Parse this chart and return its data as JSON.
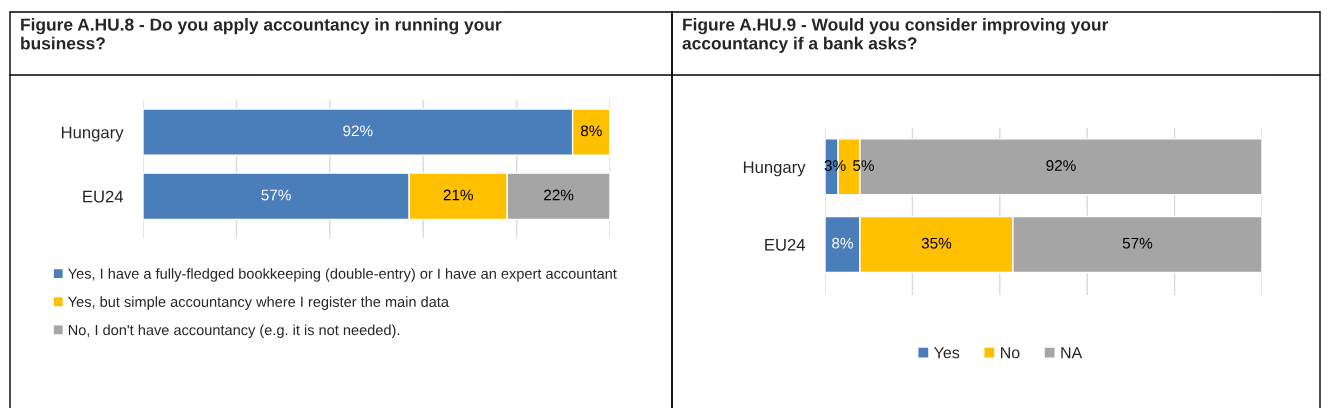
{
  "chart_data": [
    {
      "type": "bar",
      "orientation": "horizontal",
      "stacked": true,
      "title": "Figure A.HU.8 - Do you apply accountancy in running your\nbusiness?",
      "categories": [
        "Hungary",
        "EU24"
      ],
      "series": [
        {
          "name": "Yes, I have a fully-fledged bookkeeping (double-entry) or I have an expert accountant",
          "color": "#4a7ebb",
          "values": [
            92,
            57
          ],
          "value_labels": [
            "92%",
            "57%"
          ]
        },
        {
          "name": "Yes, but simple accountancy where I register the main data",
          "color": "#ffc000",
          "values": [
            8,
            21
          ],
          "value_labels": [
            "8%",
            "21%"
          ]
        },
        {
          "name": "No, I don't have accountancy (e.g. it is not needed).",
          "color": "#a5a5a5",
          "values": [
            null,
            22
          ],
          "value_labels": [
            null,
            "22%"
          ]
        }
      ],
      "grid": "x",
      "tick_labels": "y",
      "legend": "bottom"
    },
    {
      "type": "bar",
      "orientation": "horizontal",
      "stacked": true,
      "title": "Figure A.HU.9 - Would you consider improving your\naccountancy if a bank asks?",
      "categories": [
        "Hungary",
        "EU24"
      ],
      "series": [
        {
          "name": "Yes",
          "color": "#4a7ebb",
          "values": [
            3,
            8
          ],
          "value_labels": [
            "3%",
            "8%"
          ]
        },
        {
          "name": "No",
          "color": "#ffc000",
          "values": [
            5,
            35
          ],
          "value_labels": [
            "5%",
            "35%"
          ]
        },
        {
          "name": "NA",
          "color": "#a5a5a5",
          "values": [
            92,
            57
          ],
          "value_labels": [
            "92%",
            "57%"
          ]
        }
      ],
      "grid": "x",
      "tick_labels": "y",
      "legend": "bottom"
    }
  ]
}
